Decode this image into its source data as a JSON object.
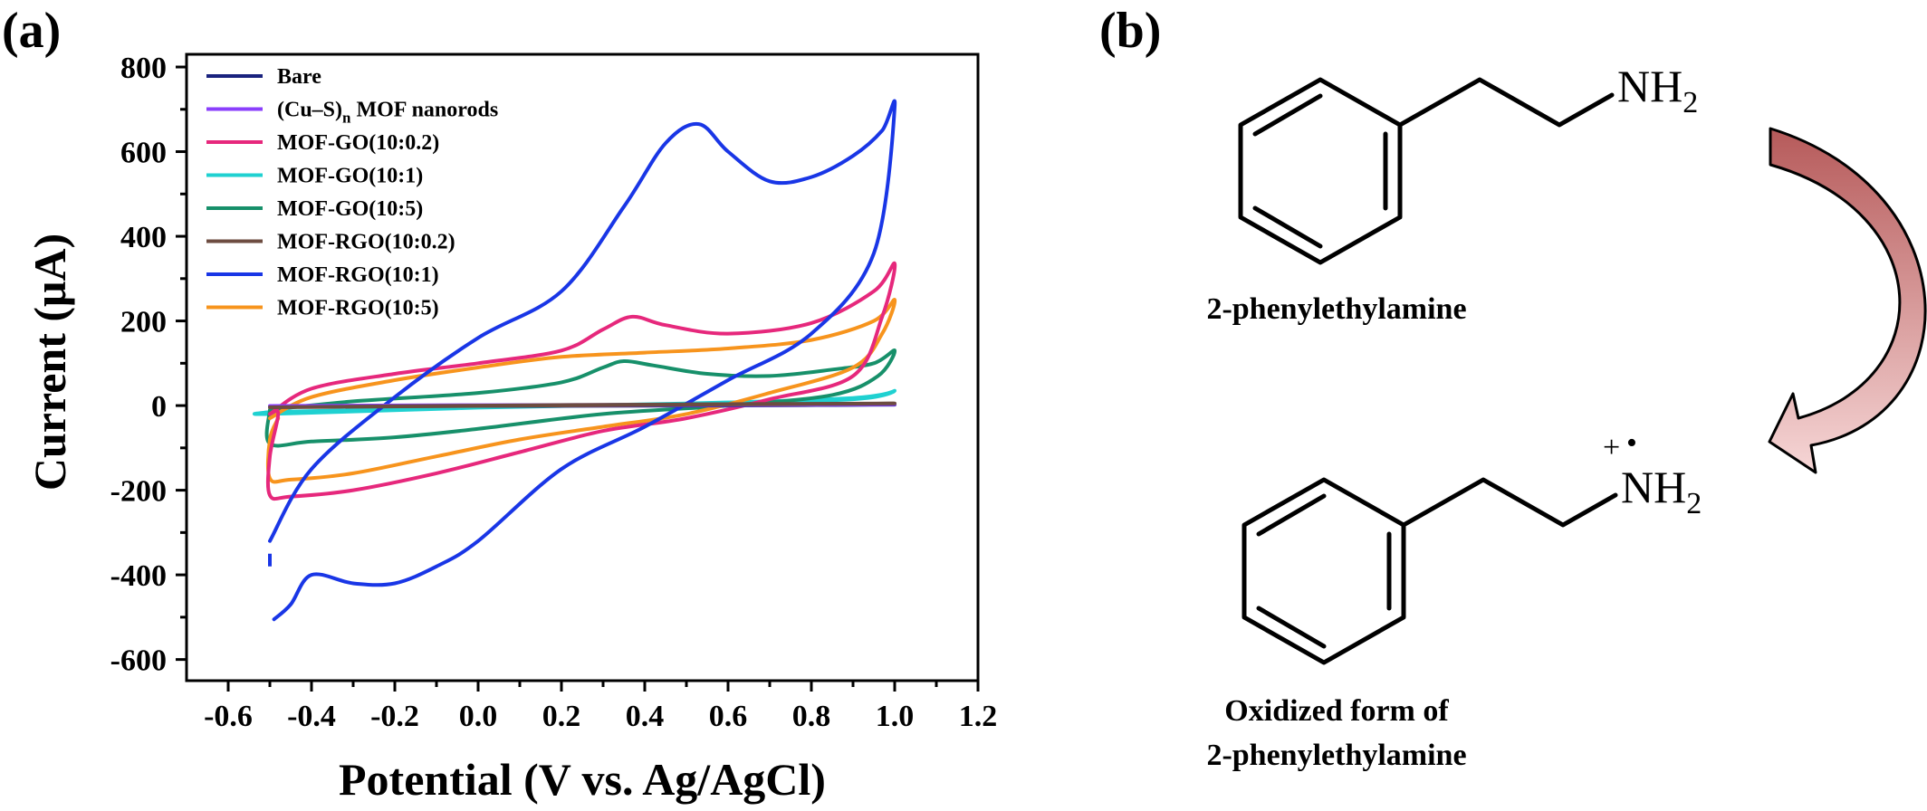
{
  "panel_a_label": "(a)",
  "panel_b_label": "(b)",
  "chart_data": {
    "type": "line",
    "title": "",
    "xlabel": "Potential (V vs. Ag/AgCl)",
    "ylabel": "Current (μA)",
    "xlim": [
      -0.7,
      1.2
    ],
    "ylim": [
      -650,
      830
    ],
    "xticks": [
      -0.6,
      -0.4,
      -0.2,
      0.0,
      0.2,
      0.4,
      0.6,
      0.8,
      1.0,
      1.2
    ],
    "xtick_labels": [
      "-0.6",
      "-0.4",
      "-0.2",
      "0.0",
      "0.2",
      "0.4",
      "0.6",
      "0.8",
      "1.0",
      "1.2"
    ],
    "yticks": [
      -600,
      -400,
      -200,
      0,
      200,
      400,
      600,
      800
    ],
    "ytick_labels": [
      "-600",
      "-400",
      "-200",
      "0",
      "200",
      "400",
      "600",
      "800"
    ],
    "grid": false,
    "legend_position": "top-left",
    "series": [
      {
        "name": "Bare",
        "name_sub": "",
        "name_suffix": "",
        "color": "#1a237e",
        "x": [
          -0.5,
          0.0,
          0.5,
          1.0,
          0.5,
          0.0,
          -0.5
        ],
        "y": [
          -2,
          -1,
          0,
          2,
          1,
          0,
          -2
        ]
      },
      {
        "name": "(Cu–S)",
        "name_sub": "n",
        "name_suffix": " MOF nanorods",
        "color": "#8a3ffc",
        "x": [
          -0.5,
          0.0,
          0.5,
          1.0,
          0.5,
          0.0,
          -0.5
        ],
        "y": [
          -1,
          0,
          1,
          3,
          2,
          1,
          -1
        ]
      },
      {
        "name": "MOF-GO(10:0.2)",
        "name_sub": "",
        "name_suffix": "",
        "color": "#e6287c",
        "x": [
          -0.5,
          -0.4,
          -0.2,
          0.0,
          0.2,
          0.3,
          0.37,
          0.45,
          0.6,
          0.8,
          0.95,
          1.0,
          0.97,
          0.9,
          0.7,
          0.5,
          0.3,
          0.1,
          -0.1,
          -0.3,
          -0.45,
          -0.5,
          -0.5,
          -0.48,
          -0.5
        ],
        "y": [
          -20,
          40,
          75,
          100,
          130,
          180,
          210,
          190,
          170,
          195,
          270,
          335,
          210,
          70,
          15,
          -30,
          -60,
          -110,
          -160,
          -200,
          -215,
          -212,
          -120,
          -20,
          -20
        ]
      },
      {
        "name": "MOF-GO(10:1)",
        "name_sub": "",
        "name_suffix": "",
        "color": "#1fd1d1",
        "x": [
          -0.5,
          0.0,
          0.5,
          0.9,
          1.0,
          0.9,
          0.5,
          0.0,
          -0.5,
          -0.5
        ],
        "y": [
          -15,
          -5,
          5,
          18,
          35,
          15,
          5,
          -5,
          -20,
          -15
        ]
      },
      {
        "name": "MOF-GO(10:5)",
        "name_sub": "",
        "name_suffix": "",
        "color": "#17906a",
        "x": [
          -0.5,
          -0.3,
          0.0,
          0.2,
          0.3,
          0.35,
          0.42,
          0.55,
          0.7,
          0.85,
          0.95,
          1.0,
          0.96,
          0.85,
          0.6,
          0.3,
          0.0,
          -0.2,
          -0.4,
          -0.5,
          -0.5
        ],
        "y": [
          -10,
          10,
          30,
          55,
          90,
          105,
          95,
          75,
          70,
          85,
          100,
          130,
          70,
          25,
          0,
          -20,
          -55,
          -75,
          -85,
          -90,
          -10
        ]
      },
      {
        "name": "MOF-RGO(10:0.2)",
        "name_sub": "",
        "name_suffix": "",
        "color": "#6d4c41",
        "x": [
          -0.5,
          0.0,
          0.5,
          1.0,
          0.5,
          0.0,
          -0.5
        ],
        "y": [
          -4,
          -1,
          2,
          5,
          3,
          0,
          -4
        ]
      },
      {
        "name": "MOF-RGO(10:1)",
        "name_sub": "",
        "name_suffix": "",
        "color": "#1936e6",
        "x": [
          -0.5,
          -0.4,
          -0.2,
          0.0,
          0.2,
          0.35,
          0.45,
          0.53,
          0.6,
          0.7,
          0.8,
          0.9,
          0.97,
          1.0,
          0.95,
          0.8,
          0.6,
          0.4,
          0.2,
          0.0,
          -0.1,
          -0.2,
          -0.3,
          -0.4,
          -0.45,
          -0.49
        ],
        "y": [
          -320,
          -150,
          20,
          160,
          270,
          470,
          620,
          665,
          600,
          530,
          540,
          590,
          650,
          705,
          360,
          170,
          60,
          -50,
          -150,
          -320,
          -380,
          -420,
          -420,
          -400,
          -470,
          -505
        ]
      },
      {
        "name": "MOF-RGO(10:5)",
        "name_sub": "",
        "name_suffix": "",
        "color": "#f7941d",
        "x": [
          -0.5,
          -0.4,
          -0.2,
          0.0,
          0.2,
          0.4,
          0.6,
          0.8,
          0.95,
          1.0,
          0.97,
          0.9,
          0.7,
          0.5,
          0.3,
          0.1,
          -0.1,
          -0.3,
          -0.45,
          -0.5,
          -0.5,
          -0.48
        ],
        "y": [
          -30,
          20,
          60,
          90,
          115,
          125,
          135,
          155,
          200,
          250,
          170,
          90,
          30,
          -20,
          -50,
          -80,
          -120,
          -160,
          -175,
          -172,
          -80,
          -30
        ]
      }
    ],
    "gap_segment": {
      "x": -0.5,
      "y_from": -380,
      "y_to": -350
    }
  },
  "scheme": {
    "reactant": {
      "label": "2-phenylethylamine",
      "group_main": "NH",
      "group_sub": "2"
    },
    "product": {
      "label_line1": "Oxidized form of",
      "label_line2": "2-phenylethylamine",
      "group_main": "NH",
      "group_sub": "2",
      "charge": "+",
      "radical": "•"
    },
    "arrow_colors": [
      "#b65a5a",
      "#f6d6d6"
    ]
  }
}
